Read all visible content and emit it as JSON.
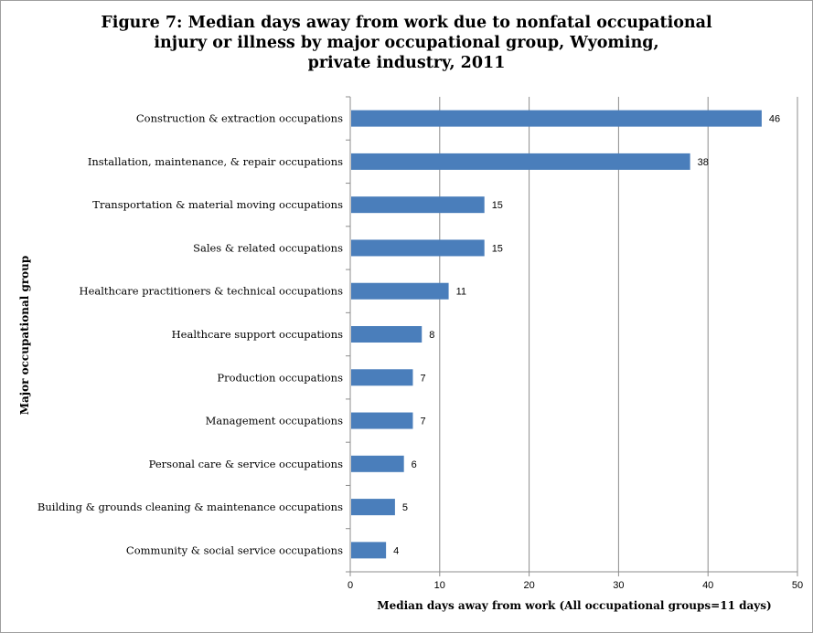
{
  "chart_data": {
    "type": "bar",
    "orientation": "horizontal",
    "title_lines": [
      "Figure 7: Median days away from work due to nonfatal occupational",
      "injury or illness by major occupational group, Wyoming,",
      "private industry, 2011"
    ],
    "xlabel": "Median days away from work (All occupational groups=11 days)",
    "ylabel": "Major occupational group",
    "xlim": [
      0,
      50
    ],
    "xticks": [
      0,
      10,
      20,
      30,
      40,
      50
    ],
    "categories": [
      "Construction & extraction occupations",
      "Installation, maintenance, & repair occupations",
      "Transportation & material moving occupations",
      "Sales & related occupations",
      "Healthcare practitioners & technical occupations",
      "Healthcare support occupations",
      "Production occupations",
      "Management occupations",
      "Personal care & service occupations",
      "Building & grounds cleaning & maintenance occupations",
      "Community & social service occupations"
    ],
    "values": [
      46,
      38,
      15,
      15,
      11,
      8,
      7,
      7,
      6,
      5,
      4
    ],
    "bar_color": "#4a7ebb",
    "grid": "vertical",
    "legend": "none"
  }
}
